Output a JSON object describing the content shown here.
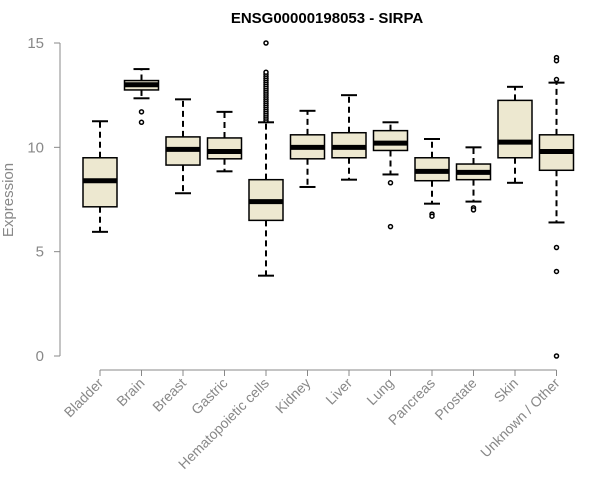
{
  "chart_data": {
    "type": "boxplot",
    "title": "ENSG00000198053 - SIRPA",
    "ylabel": "Expression",
    "ylim": [
      0,
      15
    ],
    "yticks": [
      0,
      5,
      10,
      15
    ],
    "grid": false,
    "colors": {
      "box_fill": "#ede8d0",
      "stroke": "#000000",
      "axis": "#888888"
    },
    "boxes": [
      {
        "label": "Bladder",
        "lower_whisker": 5.95,
        "q1": 7.15,
        "median": 8.4,
        "q3": 9.5,
        "upper_whisker": 11.25,
        "outliers": []
      },
      {
        "label": "Brain",
        "lower_whisker": 12.35,
        "q1": 12.75,
        "median": 13.0,
        "q3": 13.2,
        "upper_whisker": 13.75,
        "outliers": [
          11.7,
          11.2
        ]
      },
      {
        "label": "Breast",
        "lower_whisker": 7.8,
        "q1": 9.15,
        "median": 9.9,
        "q3": 10.5,
        "upper_whisker": 12.3,
        "outliers": []
      },
      {
        "label": "Gastric",
        "lower_whisker": 8.85,
        "q1": 9.45,
        "median": 9.8,
        "q3": 10.45,
        "upper_whisker": 11.7,
        "outliers": []
      },
      {
        "label": "Hematopoietic cells",
        "lower_whisker": 3.85,
        "q1": 6.5,
        "median": 7.4,
        "q3": 8.45,
        "upper_whisker": 11.2,
        "outliers": [
          11.3,
          11.4,
          11.5,
          11.6,
          11.7,
          11.8,
          11.9,
          12.0,
          12.1,
          12.2,
          12.3,
          12.4,
          12.5,
          12.6,
          12.7,
          12.8,
          12.9,
          13.0,
          13.1,
          13.2,
          13.3,
          13.4,
          13.5,
          13.6,
          15.0
        ]
      },
      {
        "label": "Kidney",
        "lower_whisker": 8.1,
        "q1": 9.45,
        "median": 10.0,
        "q3": 10.6,
        "upper_whisker": 11.75,
        "outliers": []
      },
      {
        "label": "Liver",
        "lower_whisker": 8.45,
        "q1": 9.5,
        "median": 10.0,
        "q3": 10.7,
        "upper_whisker": 12.5,
        "outliers": []
      },
      {
        "label": "Lung",
        "lower_whisker": 8.7,
        "q1": 9.85,
        "median": 10.2,
        "q3": 10.8,
        "upper_whisker": 11.2,
        "outliers": [
          8.3,
          6.2
        ]
      },
      {
        "label": "Pancreas",
        "lower_whisker": 7.3,
        "q1": 8.4,
        "median": 8.85,
        "q3": 9.5,
        "upper_whisker": 10.4,
        "outliers": [
          6.8,
          6.7
        ]
      },
      {
        "label": "Prostate",
        "lower_whisker": 7.4,
        "q1": 8.45,
        "median": 8.8,
        "q3": 9.2,
        "upper_whisker": 10.0,
        "outliers": [
          7.1,
          7.0
        ]
      },
      {
        "label": "Skin",
        "lower_whisker": 8.3,
        "q1": 9.5,
        "median": 10.25,
        "q3": 12.25,
        "upper_whisker": 12.9,
        "outliers": []
      },
      {
        "label": "Unknown / Other",
        "lower_whisker": 6.4,
        "q1": 8.9,
        "median": 9.8,
        "q3": 10.6,
        "upper_whisker": 13.1,
        "outliers": [
          14.3,
          14.15,
          13.25,
          5.2,
          4.05,
          0.0
        ]
      }
    ]
  }
}
